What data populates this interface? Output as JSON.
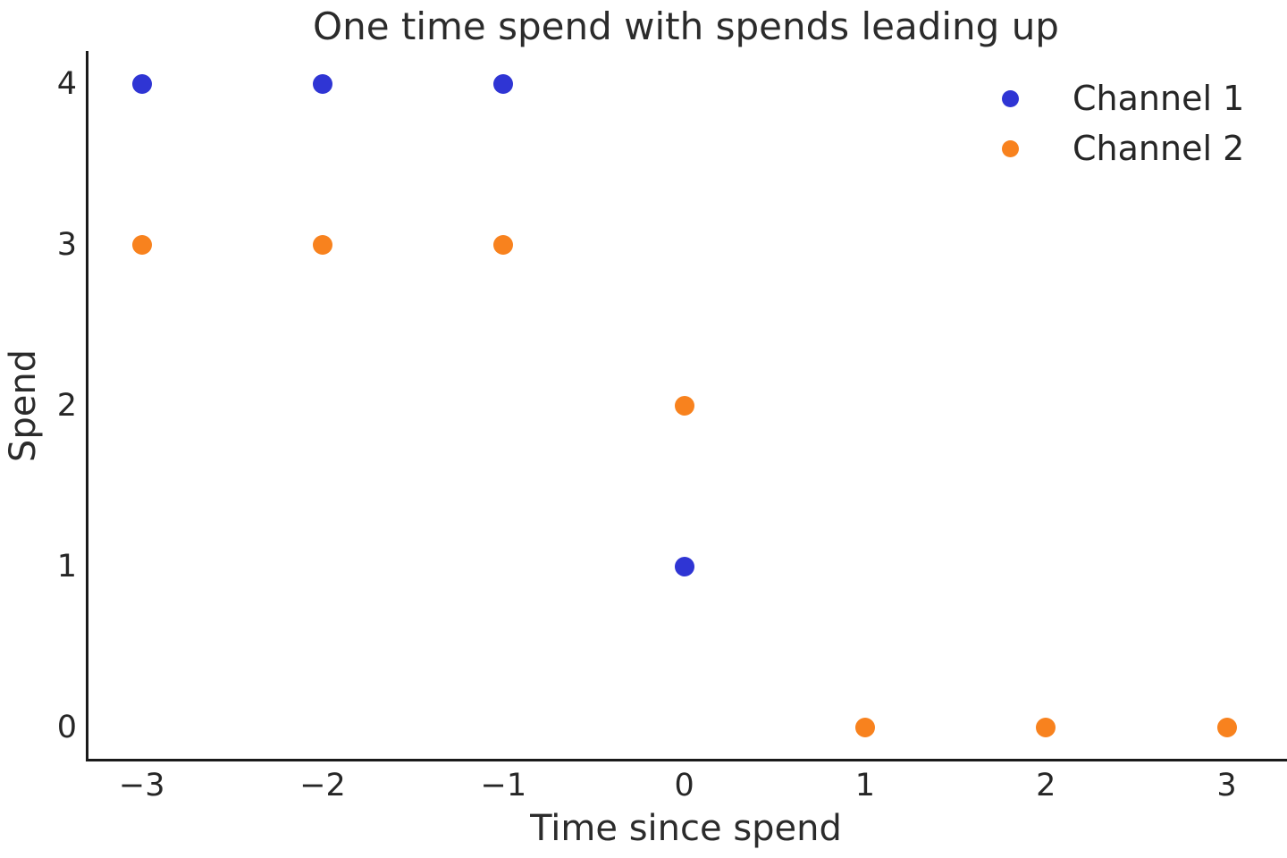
{
  "chart_data": {
    "type": "scatter",
    "title": "One time spend with spends leading up",
    "xlabel": "Time since spend",
    "ylabel": "Spend",
    "xlim": [
      -3.305,
      3.32
    ],
    "ylim": [
      -0.2,
      4.2
    ],
    "grid": false,
    "legend_position": "upper right",
    "marker": "circle",
    "marker_radius_px": 11,
    "x_ticks": [
      {
        "value": -3,
        "label": "−3"
      },
      {
        "value": -2,
        "label": "−2"
      },
      {
        "value": -1,
        "label": "−1"
      },
      {
        "value": 0,
        "label": "0"
      },
      {
        "value": 1,
        "label": "1"
      },
      {
        "value": 2,
        "label": "2"
      },
      {
        "value": 3,
        "label": "3"
      }
    ],
    "y_ticks": [
      {
        "value": 0,
        "label": "0"
      },
      {
        "value": 1,
        "label": "1"
      },
      {
        "value": 2,
        "label": "2"
      },
      {
        "value": 3,
        "label": "3"
      },
      {
        "value": 4,
        "label": "4"
      }
    ],
    "series": [
      {
        "name": "Channel 1",
        "color": "#2f35d4",
        "points": [
          [
            -3,
            4
          ],
          [
            -2,
            4
          ],
          [
            -1,
            4
          ],
          [
            0,
            1
          ]
        ]
      },
      {
        "name": "Channel 2",
        "color": "#f8821e",
        "points": [
          [
            -3,
            3
          ],
          [
            -2,
            3
          ],
          [
            -1,
            3
          ],
          [
            0,
            2
          ],
          [
            1,
            0
          ],
          [
            2,
            0
          ],
          [
            3,
            0
          ]
        ]
      }
    ]
  },
  "colors": {
    "text": "#2b2b2b",
    "tick_text": "#262626",
    "axis": "#1a1a1a",
    "background": "#ffffff"
  }
}
